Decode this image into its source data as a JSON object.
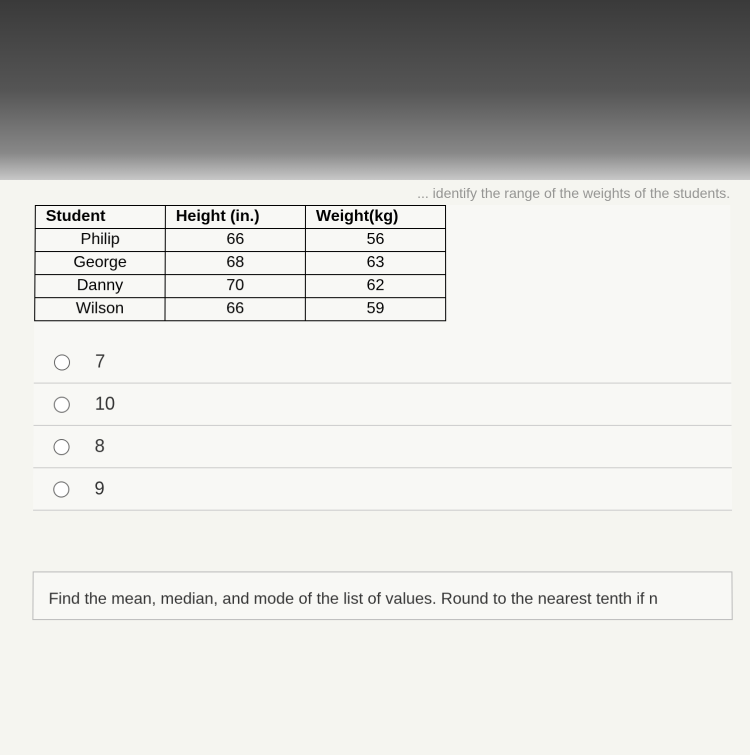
{
  "partial_question_text": "... identify the range of the weights of the students.",
  "table": {
    "headers": [
      "Student",
      "Height (in.)",
      "Weight(kg)"
    ],
    "rows": [
      [
        "Philip",
        "66",
        "56"
      ],
      [
        "George",
        "68",
        "63"
      ],
      [
        "Danny",
        "70",
        "62"
      ],
      [
        "Wilson",
        "66",
        "59"
      ]
    ],
    "border_color": "#000000",
    "header_font_weight": "bold",
    "cell_align": "center"
  },
  "options": [
    {
      "label": "7",
      "selected": false
    },
    {
      "label": "10",
      "selected": false
    },
    {
      "label": "8",
      "selected": false
    },
    {
      "label": "9",
      "selected": false
    }
  ],
  "next_question_text": "Find the mean, median, and mode of the list of values. Round to the nearest tenth if n",
  "colors": {
    "background": "#f5f5f0",
    "text": "#333333",
    "border": "#cccccc"
  }
}
